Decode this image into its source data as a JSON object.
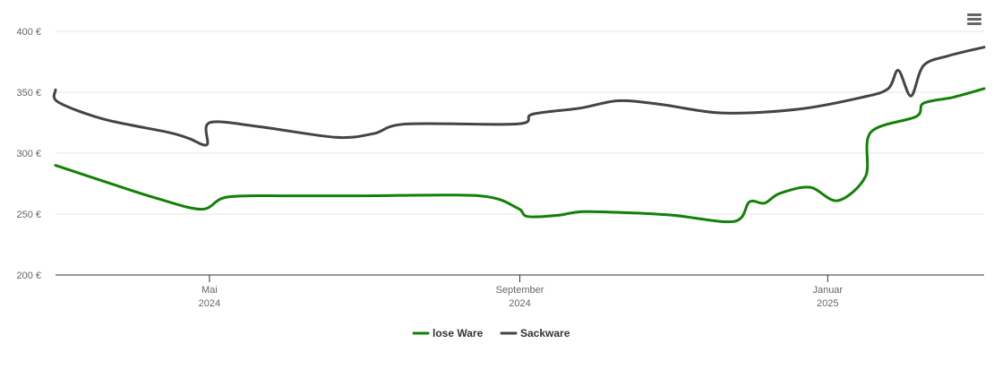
{
  "menu": {
    "icon": "hamburger-menu-icon"
  },
  "chart_data": {
    "type": "line",
    "title": "",
    "xlabel": "",
    "ylabel": "",
    "x_range": [
      "2024-03-01",
      "2025-03-04"
    ],
    "ylim": [
      200,
      400
    ],
    "y_ticks": [
      {
        "value": 200,
        "label": "200 €"
      },
      {
        "value": 250,
        "label": "250 €"
      },
      {
        "value": 300,
        "label": "300 €"
      },
      {
        "value": 350,
        "label": "350 €"
      },
      {
        "value": 400,
        "label": "400 €"
      }
    ],
    "x_ticks": [
      {
        "date": "2024-05-01",
        "month": "Mai",
        "year": "2024"
      },
      {
        "date": "2024-09-01",
        "month": "September",
        "year": "2024"
      },
      {
        "date": "2025-01-01",
        "month": "Januar",
        "year": "2025"
      }
    ],
    "grid": true,
    "legend_position": "bottom-center",
    "series": [
      {
        "name": "lose Ware",
        "color": "#138008",
        "points": [
          [
            "2024-03-01",
            290
          ],
          [
            "2024-03-20",
            277
          ],
          [
            "2024-04-10",
            263
          ],
          [
            "2024-04-28",
            254
          ],
          [
            "2024-05-08",
            264
          ],
          [
            "2024-06-01",
            265
          ],
          [
            "2024-07-01",
            265
          ],
          [
            "2024-08-16",
            265
          ],
          [
            "2024-08-31",
            255
          ],
          [
            "2024-09-04",
            248
          ],
          [
            "2024-09-16",
            249
          ],
          [
            "2024-09-26",
            252
          ],
          [
            "2024-10-15",
            251
          ],
          [
            "2024-11-01",
            249
          ],
          [
            "2024-11-25",
            244
          ],
          [
            "2024-12-01",
            260
          ],
          [
            "2024-12-07",
            259
          ],
          [
            "2024-12-13",
            267
          ],
          [
            "2024-12-25",
            272
          ],
          [
            "2025-01-05",
            261
          ],
          [
            "2025-01-16",
            281
          ],
          [
            "2025-01-18",
            317
          ],
          [
            "2025-02-05",
            330
          ],
          [
            "2025-02-08",
            341
          ],
          [
            "2025-02-20",
            346
          ],
          [
            "2025-03-04",
            353
          ]
        ]
      },
      {
        "name": "Sackware",
        "color": "#434348",
        "points": [
          [
            "2024-03-01",
            352
          ],
          [
            "2024-03-02",
            342
          ],
          [
            "2024-03-20",
            328
          ],
          [
            "2024-04-15",
            317
          ],
          [
            "2024-04-23",
            312
          ],
          [
            "2024-04-30",
            307
          ],
          [
            "2024-05-01",
            325
          ],
          [
            "2024-05-20",
            322
          ],
          [
            "2024-06-20",
            313
          ],
          [
            "2024-07-05",
            316
          ],
          [
            "2024-07-18",
            324
          ],
          [
            "2024-08-31",
            324
          ],
          [
            "2024-09-06",
            332
          ],
          [
            "2024-09-25",
            337
          ],
          [
            "2024-10-10",
            343
          ],
          [
            "2024-10-27",
            340
          ],
          [
            "2024-11-20",
            333
          ],
          [
            "2024-12-20",
            336
          ],
          [
            "2025-01-15",
            346
          ],
          [
            "2025-01-25",
            353
          ],
          [
            "2025-01-29",
            368
          ],
          [
            "2025-02-03",
            347
          ],
          [
            "2025-02-08",
            372
          ],
          [
            "2025-02-18",
            380
          ],
          [
            "2025-03-04",
            387
          ]
        ]
      }
    ]
  }
}
